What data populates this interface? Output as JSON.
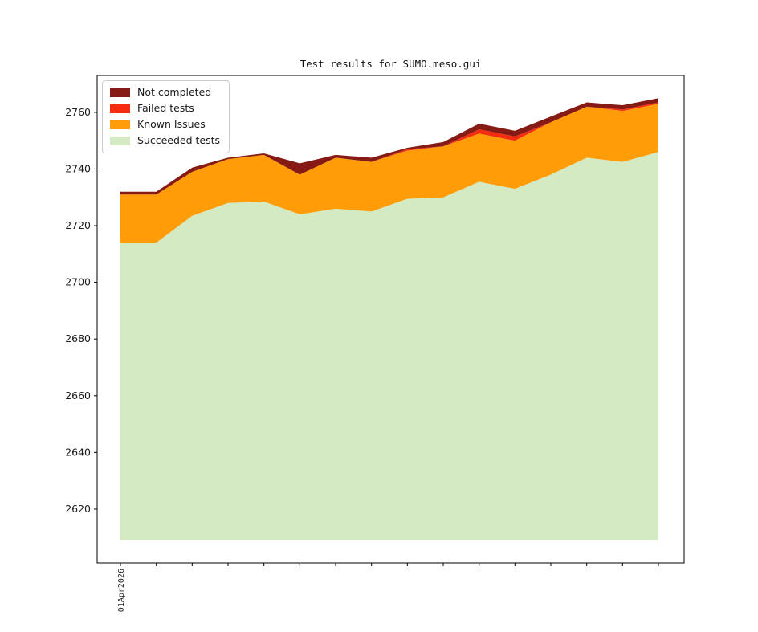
{
  "chart_data": {
    "type": "area",
    "stacked": true,
    "title": "Test results for SUMO.meso.gui",
    "x_first_tick_label": "01Apr2026",
    "n_points": 16,
    "x_ticks_labeled": 1,
    "baseline": 2609,
    "ylim": [
      2601,
      2773
    ],
    "yticks": [
      2620,
      2640,
      2660,
      2680,
      2700,
      2720,
      2740,
      2760
    ],
    "grid": false,
    "legend_position": "upper left",
    "series": [
      {
        "name": "Succeeded tests",
        "color": "#d3eac3",
        "tops": [
          2714,
          2714,
          2723.5,
          2728,
          2728.5,
          2724,
          2726,
          2725,
          2729.5,
          2730,
          2735.5,
          2733,
          2738,
          2744,
          2742.5,
          2746
        ]
      },
      {
        "name": "Known Issues",
        "color": "#ff9c08",
        "tops": [
          2731,
          2731,
          2739,
          2743.5,
          2745,
          2738,
          2744,
          2742.5,
          2746.5,
          2748,
          2752.5,
          2750,
          2756.5,
          2762,
          2760.5,
          2763
        ]
      },
      {
        "name": "Failed tests",
        "color": "#f52c10",
        "tops": [
          2731,
          2731,
          2739,
          2743.5,
          2745,
          2738,
          2744,
          2742.5,
          2747,
          2748,
          2754,
          2751.5,
          2756.5,
          2762,
          2761,
          2763.5
        ]
      },
      {
        "name": "Not completed",
        "color": "#851b14",
        "tops": [
          2732,
          2732,
          2740.5,
          2744,
          2745.5,
          2742,
          2745,
          2744,
          2747.5,
          2749.5,
          2756,
          2753.5,
          2758.5,
          2763.5,
          2762.5,
          2765
        ]
      }
    ],
    "legend": [
      {
        "label": "Not completed",
        "color": "#851b14"
      },
      {
        "label": "Failed tests",
        "color": "#f52c10"
      },
      {
        "label": "Known Issues",
        "color": "#ff9c08"
      },
      {
        "label": "Succeeded tests",
        "color": "#d3eac3"
      }
    ]
  }
}
